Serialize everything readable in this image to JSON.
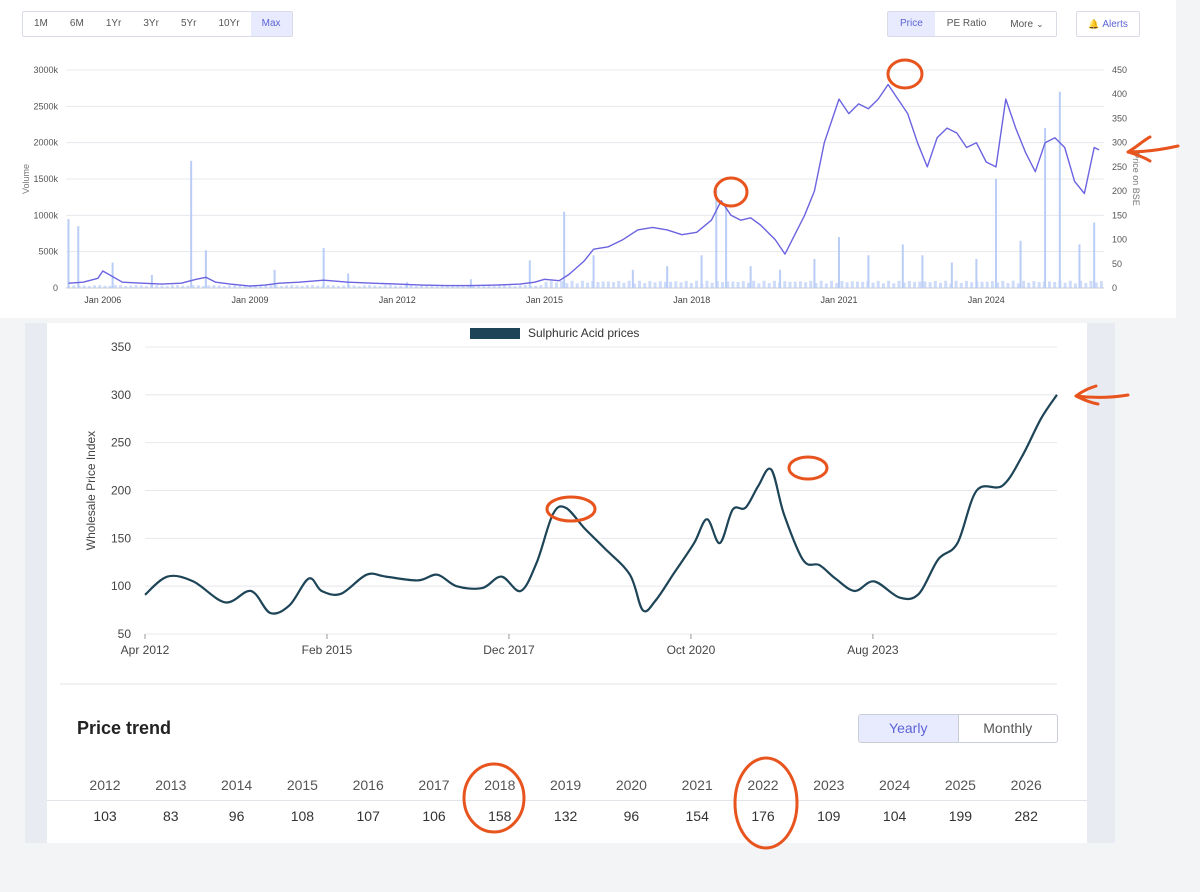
{
  "toolbar": {
    "ranges": [
      {
        "label": "1M",
        "active": false
      },
      {
        "label": "6M",
        "active": false
      },
      {
        "label": "1Yr",
        "active": false
      },
      {
        "label": "3Yr",
        "active": false
      },
      {
        "label": "5Yr",
        "active": false
      },
      {
        "label": "10Yr",
        "active": false
      },
      {
        "label": "Max",
        "active": true
      }
    ],
    "metrics": [
      {
        "label": "Price",
        "active": true
      },
      {
        "label": "PE Ratio",
        "active": false
      },
      {
        "label": "More",
        "active": false,
        "icon": "chevron-down-icon"
      }
    ],
    "alerts": {
      "label": "Alerts",
      "icon": "bell-icon"
    }
  },
  "chart_data": [
    {
      "type": "line",
      "ylabel": "Volume",
      "y2label": "Price on BSE",
      "yticks": [
        "0",
        "500k",
        "1000k",
        "1500k",
        "2000k",
        "2500k",
        "3000k"
      ],
      "y2ticks": [
        "0",
        "50",
        "100",
        "150",
        "200",
        "250",
        "300",
        "350",
        "400",
        "450"
      ],
      "xticks": [
        "Jan 2006",
        "Jan 2009",
        "Jan 2012",
        "Jan 2015",
        "Jan 2018",
        "Jan 2021",
        "Jan 2024"
      ],
      "ylim": [
        0,
        3000
      ],
      "y2lim": [
        0,
        450
      ],
      "xlim": [
        2005.25,
        2026.4
      ],
      "colors": {
        "price": "#6b63e0",
        "volume": "#b9cdf6"
      },
      "price_series": {
        "x": [
          2005.3,
          2005.6,
          2005.9,
          2006.0,
          2006.4,
          2006.8,
          2007.2,
          2007.6,
          2007.9,
          2008.1,
          2008.3,
          2008.6,
          2008.8,
          2009.0,
          2009.3,
          2009.6,
          2010.0,
          2010.5,
          2011.0,
          2011.5,
          2012.0,
          2012.5,
          2013.0,
          2013.5,
          2014.0,
          2014.5,
          2014.8,
          2015.0,
          2015.3,
          2015.5,
          2015.8,
          2016.0,
          2016.3,
          2016.6,
          2016.9,
          2017.2,
          2017.5,
          2017.8,
          2018.1,
          2018.4,
          2018.6,
          2018.8,
          2019.0,
          2019.2,
          2019.4,
          2019.7,
          2019.9,
          2020.1,
          2020.3,
          2020.5,
          2020.7,
          2020.9,
          2021.0,
          2021.2,
          2021.4,
          2021.6,
          2021.8,
          2022.0,
          2022.2,
          2022.4,
          2022.6,
          2022.8,
          2023.0,
          2023.2,
          2023.4,
          2023.6,
          2023.8,
          2024.0,
          2024.2,
          2024.4,
          2024.6,
          2024.8,
          2025.0,
          2025.2,
          2025.4,
          2025.6,
          2025.8,
          2026.0,
          2026.2,
          2026.3
        ],
        "y": [
          10,
          12,
          20,
          35,
          12,
          10,
          8,
          10,
          18,
          22,
          12,
          8,
          6,
          4,
          6,
          10,
          12,
          16,
          12,
          10,
          8,
          6,
          5,
          5,
          6,
          8,
          12,
          18,
          15,
          28,
          55,
          80,
          85,
          100,
          120,
          125,
          120,
          110,
          115,
          140,
          180,
          150,
          140,
          145,
          130,
          100,
          70,
          110,
          150,
          200,
          300,
          360,
          390,
          360,
          380,
          370,
          390,
          420,
          390,
          360,
          300,
          250,
          310,
          330,
          320,
          290,
          300,
          260,
          250,
          390,
          330,
          280,
          240,
          300,
          310,
          290,
          220,
          195,
          290,
          285
        ]
      },
      "volume_series": {
        "x": [
          2005.3,
          2005.5,
          2006.2,
          2007.0,
          2007.8,
          2008.1,
          2009.5,
          2010.5,
          2011.0,
          2012.2,
          2013.5,
          2014.7,
          2015.4,
          2016.0,
          2016.8,
          2017.5,
          2018.2,
          2018.5,
          2018.7,
          2019.2,
          2019.8,
          2020.5,
          2021.0,
          2021.6,
          2022.3,
          2022.7,
          2023.3,
          2023.8,
          2024.2,
          2024.7,
          2025.2,
          2025.5,
          2025.9,
          2026.2
        ],
        "y": [
          950,
          850,
          350,
          180,
          1750,
          520,
          250,
          550,
          200,
          80,
          120,
          380,
          1050,
          450,
          250,
          300,
          450,
          1350,
          1100,
          300,
          250,
          400,
          700,
          450,
          600,
          450,
          350,
          400,
          1500,
          650,
          2200,
          2700,
          600,
          900
        ]
      }
    },
    {
      "type": "line",
      "legend": "Sulphuric Acid prices",
      "ylabel": "Wholesale Price Index",
      "yticks": [
        50,
        100,
        150,
        200,
        250,
        300,
        350
      ],
      "ylim": [
        50,
        350
      ],
      "xticks": [
        "Apr 2012",
        "Feb 2015",
        "Dec 2017",
        "Oct 2020",
        "Aug 2023"
      ],
      "color": "#1d4457",
      "x": [
        2012.25,
        2012.6,
        2013.0,
        2013.5,
        2013.9,
        2014.2,
        2014.5,
        2014.8,
        2015.0,
        2015.3,
        2015.7,
        2016.0,
        2016.5,
        2016.8,
        2017.1,
        2017.5,
        2017.8,
        2018.1,
        2018.35,
        2018.6,
        2018.8,
        2019.1,
        2019.4,
        2019.8,
        2020.0,
        2020.2,
        2020.5,
        2020.8,
        2021.0,
        2021.2,
        2021.4,
        2021.6,
        2021.8,
        2022.0,
        2022.2,
        2022.5,
        2022.75,
        2023.0,
        2023.3,
        2023.6,
        2024.0,
        2024.3,
        2024.6,
        2024.9,
        2025.2,
        2025.6,
        2025.9,
        2026.2,
        2026.45
      ],
      "y": [
        91,
        110,
        105,
        83,
        95,
        72,
        80,
        108,
        95,
        92,
        112,
        110,
        106,
        112,
        100,
        98,
        110,
        95,
        125,
        175,
        182,
        160,
        140,
        112,
        75,
        85,
        115,
        145,
        170,
        145,
        180,
        182,
        205,
        222,
        175,
        127,
        122,
        108,
        95,
        105,
        88,
        92,
        128,
        145,
        200,
        205,
        235,
        275,
        300
      ]
    }
  ],
  "price_trend": {
    "title": "Price trend",
    "tabs": [
      {
        "label": "Yearly",
        "active": true
      },
      {
        "label": "Monthly",
        "active": false
      }
    ],
    "years": [
      "2012",
      "2013",
      "2014",
      "2015",
      "2016",
      "2017",
      "2018",
      "2019",
      "2020",
      "2021",
      "2022",
      "2023",
      "2024",
      "2025",
      "2026"
    ],
    "values": [
      "103",
      "83",
      "96",
      "108",
      "107",
      "106",
      "158",
      "132",
      "96",
      "154",
      "176",
      "109",
      "104",
      "199",
      "282"
    ]
  },
  "annotations": {
    "color": "#e8541e"
  }
}
